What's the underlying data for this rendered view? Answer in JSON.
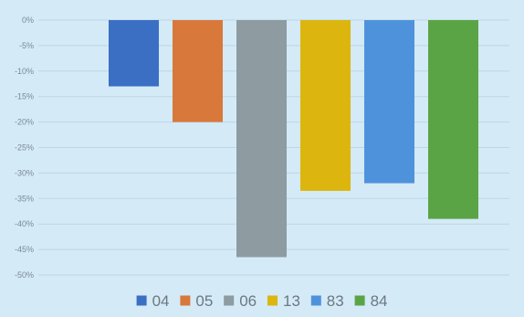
{
  "chart_data": {
    "type": "bar",
    "title": "",
    "xlabel": "",
    "ylabel": "",
    "y_tick_format": "percent",
    "ylim": [
      -50,
      0
    ],
    "y_ticks": [
      0,
      -5,
      -10,
      -15,
      -20,
      -25,
      -30,
      -35,
      -40,
      -45,
      -50
    ],
    "y_tick_labels": [
      "0%",
      "-5%",
      "-10%",
      "-15%",
      "-20%",
      "-25%",
      "-30%",
      "-35%",
      "-40%",
      "-45%",
      "-50%"
    ],
    "grid": true,
    "legend_position": "bottom",
    "series": [
      {
        "name": "04",
        "value": -13.0,
        "color": "#3a6fc4"
      },
      {
        "name": "05",
        "value": -20.0,
        "color": "#d8783a"
      },
      {
        "name": "06",
        "value": -46.5,
        "color": "#8e9ba1"
      },
      {
        "name": "13",
        "value": -33.5,
        "color": "#dcb60f"
      },
      {
        "name": "83",
        "value": -32.0,
        "color": "#4f92dc"
      },
      {
        "name": "84",
        "value": -39.0,
        "color": "#5ba445"
      }
    ]
  }
}
